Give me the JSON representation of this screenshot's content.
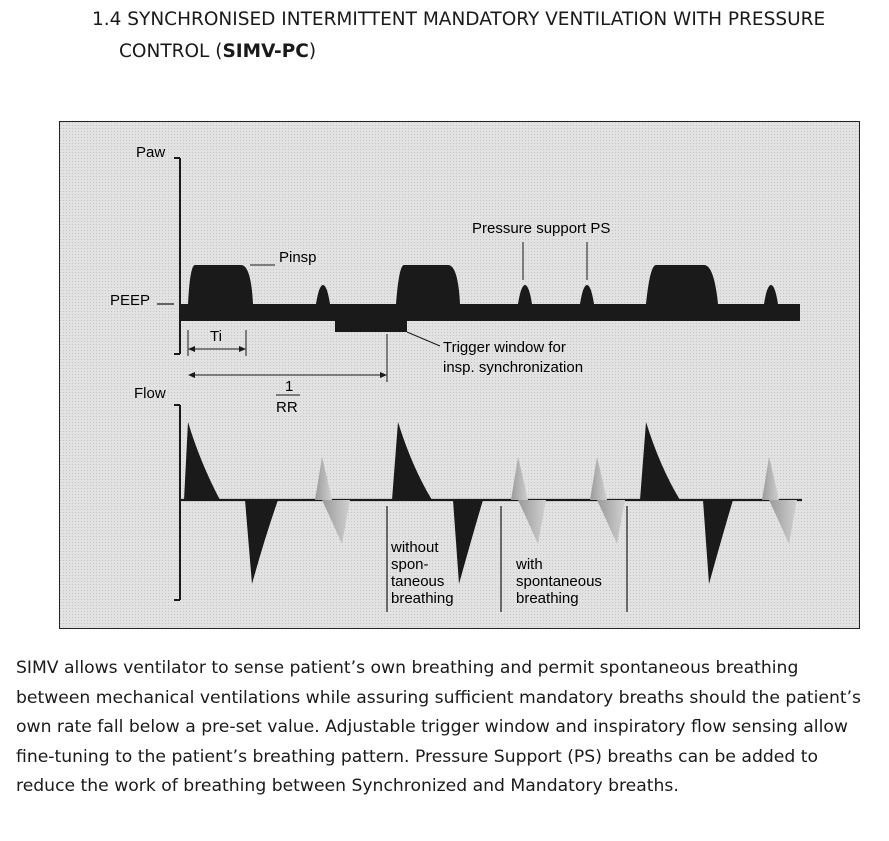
{
  "heading": {
    "line1": "1.4 SYNCHRONISED INTERMITTENT MANDATORY VENTILATION WITH PRESSURE",
    "line2_prefix": "CONTROL (",
    "line2_bold": "SIMV-PC",
    "line2_suffix": ")"
  },
  "figure": {
    "paw_label": "Paw",
    "peep_label": "PEEP",
    "pinsp_label": "Pinsp",
    "ti_label": "Ti",
    "period_numerator": "1",
    "period_denominator": "RR",
    "flow_label": "Flow",
    "pressure_support_label": "Pressure support PS",
    "trigger_window_line1": "Trigger window for",
    "trigger_window_line2": "insp. synchronization",
    "without_line1": "without",
    "without_line2": "spon-",
    "without_line3": "taneous",
    "without_line4": "breathing",
    "with_line1": "with",
    "with_line2": "spontaneous",
    "with_line3": "breathing",
    "colors": {
      "waveform": "#1a1a1a",
      "spontaneous_flow": "#b8b8b8",
      "background": "#e4e4e4"
    }
  },
  "paragraph": "SIMV allows ventilator to sense patient’s own breathing and permit spontaneous breathing between mechanical ventilations while assuring sufficient mandatory breaths should the patient’s own rate fall below a pre-set value. Adjustable trigger window and inspiratory flow sensing allow fine-tuning to the patient’s breathing pattern. Pressure Support (PS) breaths can be added to reduce the work of breathing between Synchronized and Mandatory breaths."
}
